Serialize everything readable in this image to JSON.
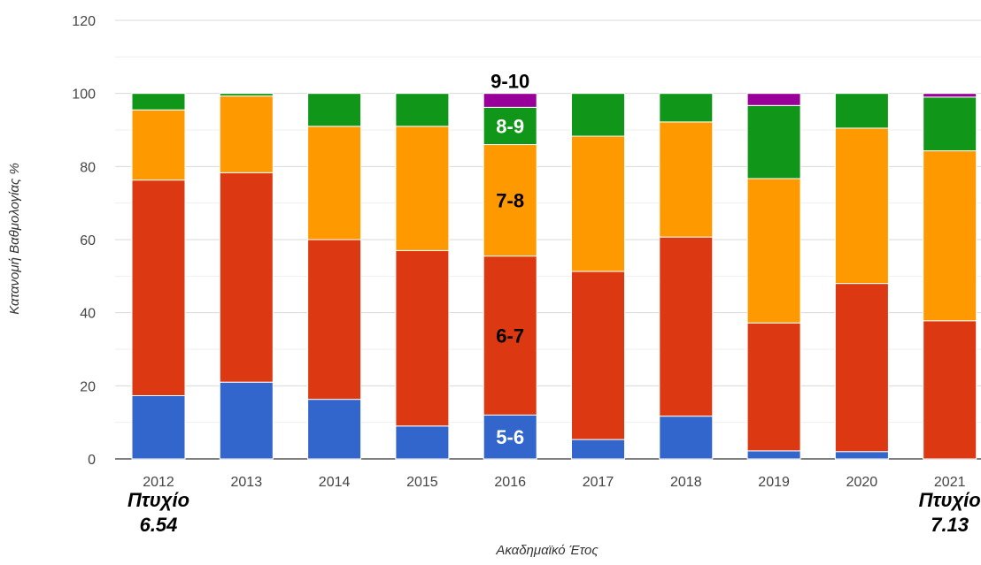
{
  "chart_data": {
    "type": "bar",
    "stacked": true,
    "categories": [
      "2012",
      "2013",
      "2014",
      "2015",
      "2016",
      "2017",
      "2018",
      "2019",
      "2020",
      "2021"
    ],
    "series": [
      {
        "name": "5-6",
        "color": "#3366cc",
        "values": [
          17.3,
          21.0,
          16.3,
          9.0,
          12.0,
          5.3,
          11.7,
          2.2,
          2.0,
          0.0
        ]
      },
      {
        "name": "6-7",
        "color": "#dc3912",
        "values": [
          59.0,
          57.3,
          43.7,
          48.0,
          43.5,
          46.0,
          49.0,
          35.0,
          46.0,
          37.8
        ]
      },
      {
        "name": "7-8",
        "color": "#ff9900",
        "values": [
          19.2,
          21.0,
          31.0,
          34.0,
          30.5,
          37.0,
          31.5,
          39.5,
          42.5,
          46.5
        ]
      },
      {
        "name": "8-9",
        "color": "#109618",
        "values": [
          4.5,
          0.7,
          9.0,
          9.0,
          10.2,
          11.7,
          7.8,
          20.0,
          9.5,
          14.7
        ]
      },
      {
        "name": "9-10",
        "color": "#990099",
        "values": [
          0.0,
          0.0,
          0.0,
          0.0,
          3.8,
          0.0,
          0.0,
          3.3,
          0.0,
          1.0
        ]
      }
    ],
    "xlabel": "Ακαδημαϊκό Έτος",
    "ylabel": "Κατανομή Βαθμολογίας %",
    "ylim": [
      0,
      120
    ],
    "yticks": [
      0,
      20,
      40,
      60,
      80,
      100,
      120
    ],
    "grid": true,
    "legend": "none",
    "segment_labels": {
      "category": "2016",
      "labels": [
        {
          "series": "5-6",
          "text": "5-6",
          "color": "#ffffff"
        },
        {
          "series": "6-7",
          "text": "6-7",
          "color": "#000000"
        },
        {
          "series": "7-8",
          "text": "7-8",
          "color": "#000000"
        },
        {
          "series": "8-9",
          "text": "8-9",
          "color": "#ffffff"
        },
        {
          "series": "9-10",
          "text": "9-10",
          "color": "#000000"
        }
      ]
    },
    "annotations": [
      {
        "category": "2012",
        "line1": "Πτυχίο",
        "line2": "6.54"
      },
      {
        "category": "2021",
        "line1": "Πτυχίο",
        "line2": "7.13"
      }
    ]
  }
}
